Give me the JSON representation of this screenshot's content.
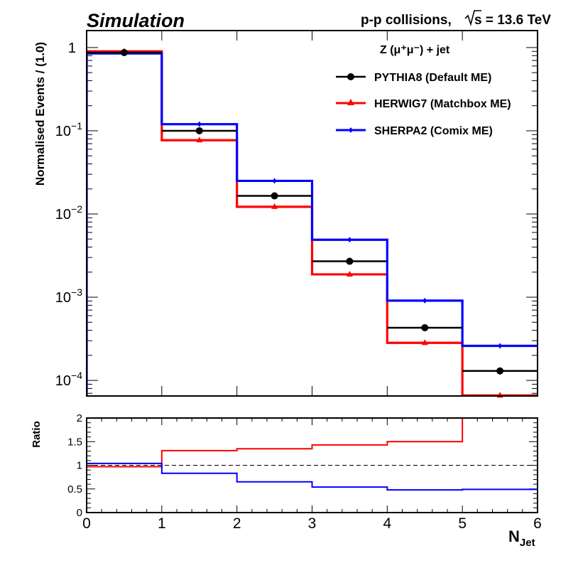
{
  "chart_data": [
    {
      "type": "line",
      "style": "step-histogram",
      "label_simulation": "Simulation",
      "label_collisions_prefix": "p-p collisions,",
      "label_energy": "s = 13.6 TeV",
      "legend_title": "Z (μ⁺μ⁻) + jet",
      "ylabel": "Normalised Events / (1.0)",
      "y_scale": "log",
      "ylim": [
        6.5e-05,
        1.6
      ],
      "y_ticks": [
        {
          "value": 1,
          "base": "1",
          "exp": ""
        },
        {
          "value": 0.1,
          "base": "10",
          "exp": "−1"
        },
        {
          "value": 0.01,
          "base": "10",
          "exp": "−2"
        },
        {
          "value": 0.001,
          "base": "10",
          "exp": "−3"
        },
        {
          "value": 0.0001,
          "base": "10",
          "exp": "−4"
        }
      ],
      "bin_edges": [
        0,
        1,
        2,
        3,
        4,
        5,
        6
      ],
      "legend_position": "top-right",
      "series": [
        {
          "name": "PYTHIA8 (Default ME)",
          "color": "#000000",
          "marker": "circle",
          "values": [
            0.87,
            0.1,
            0.0165,
            0.0027,
            0.00043,
            0.00013
          ]
        },
        {
          "name": "HERWIG7 (Matchbox ME)",
          "color": "#ff0000",
          "marker": "triangle",
          "values": [
            0.9,
            0.077,
            0.0122,
            0.00188,
            0.000283,
            6.6e-05
          ]
        },
        {
          "name": "SHERPA2 (Comix ME)",
          "color": "#0000ff",
          "marker": "diamond",
          "values": [
            0.85,
            0.12,
            0.025,
            0.0049,
            0.00091,
            0.00026
          ]
        }
      ]
    },
    {
      "type": "line",
      "style": "step-histogram",
      "ylabel": "Ratio",
      "xlabel_base": "N",
      "xlabel_sub": "Jet",
      "xlim": [
        0,
        6
      ],
      "ylim": [
        0,
        2
      ],
      "x_ticks": [
        "0",
        "1",
        "2",
        "3",
        "4",
        "5",
        "6"
      ],
      "y_ticks": [
        {
          "value": 0,
          "label": "0"
        },
        {
          "value": 0.5,
          "label": "0.5"
        },
        {
          "value": 1,
          "label": "1"
        },
        {
          "value": 1.5,
          "label": "1.5"
        },
        {
          "value": 2,
          "label": "2"
        }
      ],
      "reference_line": 1,
      "bin_edges": [
        0,
        1,
        2,
        3,
        4,
        5,
        6
      ],
      "series": [
        {
          "color": "#ff0000",
          "values": [
            0.97,
            1.31,
            1.35,
            1.43,
            1.5,
            2.0
          ]
        },
        {
          "color": "#0000ff",
          "values": [
            1.04,
            0.83,
            0.65,
            0.54,
            0.48,
            0.49
          ]
        }
      ]
    }
  ]
}
